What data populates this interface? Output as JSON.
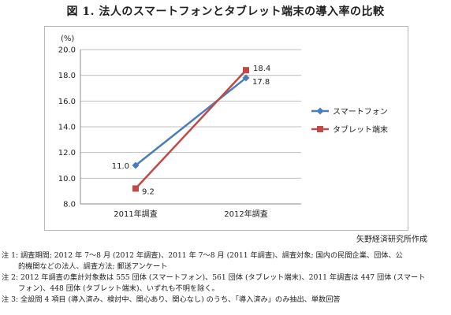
{
  "title": "図 1.  法人のスマートフォンとタブレット端末の導入率の比較",
  "source": "矢野経済研究所作成",
  "notes": [
    "注 1: 調査期間; 2012 年 7〜8 月 (2012 年調査)、2011 年 7〜8 月 (2011 年調査)、調査対象; 国内の民間企業、団体、公",
    "的機関などの法人、調査方法; 郵送アンケート",
    "注 2: 2012 年調査の集計対象数は 555 団体 (スマートフォン)、561 団体 (タブレット端末)、2011 年調査は 447 団体 (スマート",
    "フォン)、448 団体 (タブレット端末)、いずれも不明を除く。",
    "注 3: 全設問 4 項目 (導入済み、検討中、関心あり、関心なし) のうち、「導入済み」のみ抽出、単数回答"
  ],
  "chart_data": {
    "type": "line",
    "categories": [
      "2011年調査",
      "2012年調査"
    ],
    "ylabel": "(%)",
    "ylim": [
      8.0,
      20.0
    ],
    "yticks": [
      "8.0",
      "10.0",
      "12.0",
      "14.0",
      "16.0",
      "18.0",
      "20.0"
    ],
    "grid": true,
    "legend_position": "right",
    "series": [
      {
        "name": "スマートフォン",
        "values": [
          11.0,
          17.8
        ],
        "labels": [
          "11.0",
          "17.8"
        ],
        "color": "#4a7ebb",
        "marker": "diamond"
      },
      {
        "name": "タブレット端末",
        "values": [
          9.2,
          18.4
        ],
        "labels": [
          "9.2",
          "18.4"
        ],
        "color": "#be4b48",
        "marker": "square"
      }
    ]
  }
}
